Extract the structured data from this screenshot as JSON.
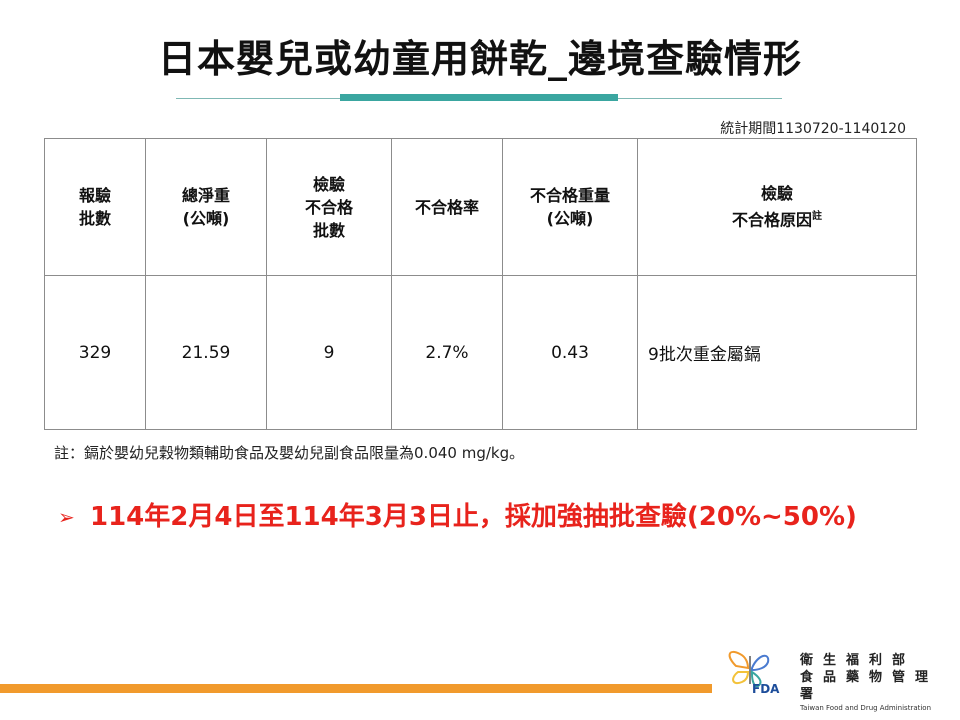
{
  "title": "日本嬰兒或幼童用餅乾_邊境查驗情形",
  "period": "統計期間1130720-1140120",
  "table": {
    "headers": [
      [
        "報驗",
        "批數"
      ],
      [
        "總淨重",
        "(公噸)"
      ],
      [
        "檢驗",
        "不合格",
        "批數"
      ],
      [
        "不合格率"
      ],
      [
        "不合格重量",
        "(公噸)"
      ],
      [
        "檢驗",
        "不合格原因"
      ]
    ],
    "header_note_mark": "註",
    "row": [
      "329",
      "21.59",
      "9",
      "2.7%",
      "0.43",
      "9批次重金屬鎘"
    ]
  },
  "footnote": "註：鎘於嬰幼兒穀物類輔助食品及嬰幼兒副食品限量為0.040 mg/kg。",
  "bullet": {
    "icon": "arrow-bullet-icon",
    "text": "114年2月4日至114年3月3日止，採加強抽批查驗(20%~50%)"
  },
  "logo": {
    "line1": "衛生福利部",
    "line2": "食品藥物管理署",
    "line3": "Taiwan Food and Drug Administration",
    "abbr": "FDA"
  },
  "colors": {
    "accent_teal": "#3aa6a0",
    "bullet_red": "#e8231c",
    "bottom_orange": "#f19a2c"
  }
}
